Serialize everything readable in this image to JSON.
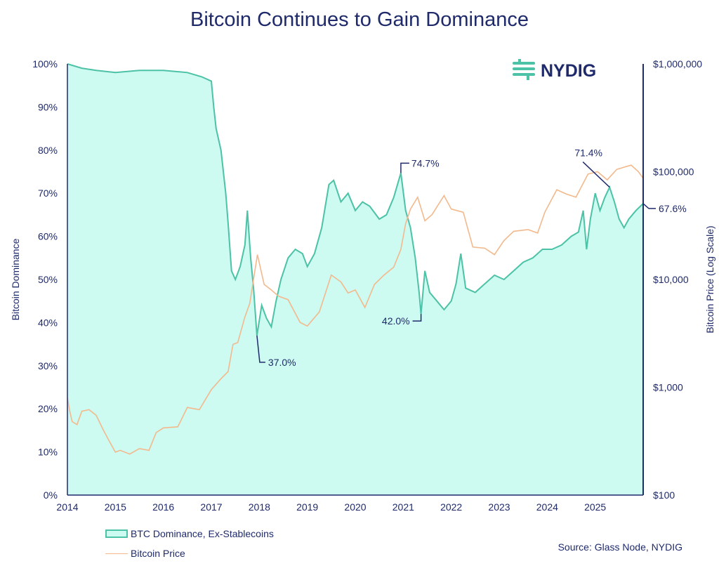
{
  "chart_data": {
    "type": "area",
    "title": "Bitcoin Continues to Gain Dominance",
    "ylabel": "Bitcoin Dominance",
    "y2label": "Bitcoin Price (Log Scale)",
    "xlim": [
      2014,
      2026
    ],
    "ylim": [
      0,
      100
    ],
    "y2lim": [
      100,
      1000000
    ],
    "y2scale": "log",
    "grid": false,
    "legend_placement": "bottom-left",
    "x_ticks": [
      "2014",
      "2015",
      "2016",
      "2017",
      "2018",
      "2019",
      "2020",
      "2021",
      "2022",
      "2023",
      "2024",
      "2025"
    ],
    "y_ticks": [
      "0%",
      "10%",
      "20%",
      "30%",
      "40%",
      "50%",
      "60%",
      "70%",
      "80%",
      "90%",
      "100%"
    ],
    "y2_ticks": [
      "$100",
      "$1,000",
      "$10,000",
      "$100,000",
      "$1,000,000"
    ],
    "colors": {
      "dominance_fill": "#cdfaf1",
      "dominance_line": "#4cc2a6",
      "price": "#f3b98c",
      "axis": "#1f2a6b"
    },
    "series": [
      {
        "name": "BTC Dominance, Ex-Stablecoins",
        "axis": "left",
        "points": [
          [
            2014.0,
            100
          ],
          [
            2014.3,
            99
          ],
          [
            2014.6,
            98.5
          ],
          [
            2015.0,
            98
          ],
          [
            2015.5,
            98.5
          ],
          [
            2016.0,
            98.5
          ],
          [
            2016.5,
            98
          ],
          [
            2016.8,
            97
          ],
          [
            2017.0,
            96
          ],
          [
            2017.05,
            90
          ],
          [
            2017.1,
            85
          ],
          [
            2017.2,
            80
          ],
          [
            2017.3,
            70
          ],
          [
            2017.35,
            63
          ],
          [
            2017.42,
            52
          ],
          [
            2017.5,
            50
          ],
          [
            2017.6,
            53
          ],
          [
            2017.7,
            58
          ],
          [
            2017.75,
            66
          ],
          [
            2017.82,
            55
          ],
          [
            2017.88,
            48
          ],
          [
            2017.95,
            37
          ],
          [
            2018.05,
            44
          ],
          [
            2018.15,
            41
          ],
          [
            2018.25,
            39
          ],
          [
            2018.35,
            45
          ],
          [
            2018.45,
            50
          ],
          [
            2018.6,
            55
          ],
          [
            2018.75,
            57
          ],
          [
            2018.9,
            56
          ],
          [
            2019.0,
            53
          ],
          [
            2019.15,
            56
          ],
          [
            2019.3,
            62
          ],
          [
            2019.45,
            72
          ],
          [
            2019.55,
            73
          ],
          [
            2019.7,
            68
          ],
          [
            2019.85,
            70
          ],
          [
            2020.0,
            66
          ],
          [
            2020.15,
            68
          ],
          [
            2020.3,
            67
          ],
          [
            2020.5,
            64
          ],
          [
            2020.65,
            65
          ],
          [
            2020.8,
            69
          ],
          [
            2020.95,
            74.7
          ],
          [
            2021.05,
            66
          ],
          [
            2021.15,
            62
          ],
          [
            2021.25,
            55
          ],
          [
            2021.33,
            47
          ],
          [
            2021.37,
            42
          ],
          [
            2021.45,
            52
          ],
          [
            2021.55,
            47
          ],
          [
            2021.7,
            45
          ],
          [
            2021.85,
            43
          ],
          [
            2022.0,
            45
          ],
          [
            2022.1,
            49
          ],
          [
            2022.2,
            56
          ],
          [
            2022.3,
            48
          ],
          [
            2022.5,
            47
          ],
          [
            2022.7,
            49
          ],
          [
            2022.9,
            51
          ],
          [
            2023.1,
            50
          ],
          [
            2023.3,
            52
          ],
          [
            2023.5,
            54
          ],
          [
            2023.7,
            55
          ],
          [
            2023.9,
            57
          ],
          [
            2024.1,
            57
          ],
          [
            2024.3,
            58
          ],
          [
            2024.5,
            60
          ],
          [
            2024.65,
            61
          ],
          [
            2024.75,
            66
          ],
          [
            2024.82,
            57
          ],
          [
            2024.9,
            64
          ],
          [
            2025.0,
            70
          ],
          [
            2025.1,
            66
          ],
          [
            2025.2,
            69
          ],
          [
            2025.3,
            71.4
          ],
          [
            2025.4,
            68
          ],
          [
            2025.5,
            64
          ],
          [
            2025.6,
            62
          ],
          [
            2025.7,
            64
          ],
          [
            2025.85,
            66
          ],
          [
            2026.0,
            67.6
          ]
        ]
      },
      {
        "name": "Bitcoin Price",
        "axis": "right",
        "points": [
          [
            2014.0,
            800
          ],
          [
            2014.05,
            600
          ],
          [
            2014.1,
            480
          ],
          [
            2014.2,
            450
          ],
          [
            2014.3,
            600
          ],
          [
            2014.45,
            620
          ],
          [
            2014.6,
            550
          ],
          [
            2014.75,
            400
          ],
          [
            2014.85,
            330
          ],
          [
            2015.0,
            250
          ],
          [
            2015.1,
            260
          ],
          [
            2015.3,
            240
          ],
          [
            2015.5,
            270
          ],
          [
            2015.7,
            260
          ],
          [
            2015.85,
            380
          ],
          [
            2016.0,
            420
          ],
          [
            2016.3,
            430
          ],
          [
            2016.5,
            650
          ],
          [
            2016.75,
            620
          ],
          [
            2017.0,
            950
          ],
          [
            2017.2,
            1200
          ],
          [
            2017.35,
            1400
          ],
          [
            2017.45,
            2500
          ],
          [
            2017.55,
            2600
          ],
          [
            2017.7,
            4500
          ],
          [
            2017.8,
            6000
          ],
          [
            2017.96,
            17000
          ],
          [
            2018.1,
            9000
          ],
          [
            2018.25,
            8000
          ],
          [
            2018.4,
            7000
          ],
          [
            2018.6,
            6500
          ],
          [
            2018.85,
            4000
          ],
          [
            2019.0,
            3700
          ],
          [
            2019.25,
            5000
          ],
          [
            2019.5,
            11000
          ],
          [
            2019.7,
            9500
          ],
          [
            2019.85,
            7500
          ],
          [
            2020.0,
            8000
          ],
          [
            2020.2,
            5500
          ],
          [
            2020.4,
            9000
          ],
          [
            2020.6,
            11000
          ],
          [
            2020.8,
            13000
          ],
          [
            2020.95,
            19000
          ],
          [
            2021.05,
            33000
          ],
          [
            2021.15,
            45000
          ],
          [
            2021.3,
            58000
          ],
          [
            2021.45,
            35000
          ],
          [
            2021.6,
            40000
          ],
          [
            2021.85,
            60000
          ],
          [
            2022.0,
            45000
          ],
          [
            2022.25,
            42000
          ],
          [
            2022.45,
            20000
          ],
          [
            2022.7,
            19500
          ],
          [
            2022.9,
            17000
          ],
          [
            2023.1,
            23000
          ],
          [
            2023.3,
            28000
          ],
          [
            2023.6,
            29000
          ],
          [
            2023.8,
            27000
          ],
          [
            2023.95,
            42000
          ],
          [
            2024.2,
            68000
          ],
          [
            2024.4,
            62000
          ],
          [
            2024.6,
            58000
          ],
          [
            2024.85,
            95000
          ],
          [
            2025.05,
            100000
          ],
          [
            2025.25,
            84000
          ],
          [
            2025.45,
            105000
          ],
          [
            2025.6,
            110000
          ],
          [
            2025.75,
            115000
          ],
          [
            2025.9,
            100000
          ],
          [
            2026.0,
            87000
          ]
        ]
      }
    ],
    "annotations": [
      {
        "label": "37.0%",
        "x": 2017.95,
        "y": 37.0
      },
      {
        "label": "74.7%",
        "x": 2020.95,
        "y": 74.7
      },
      {
        "label": "42.0%",
        "x": 2021.37,
        "y": 42.0
      },
      {
        "label": "71.4%",
        "x": 2025.3,
        "y": 71.4
      },
      {
        "label": "67.6%",
        "x": 2026.0,
        "y": 67.6
      }
    ]
  },
  "logo": "NYDIG",
  "source": "Source: Glass Node, NYDIG"
}
